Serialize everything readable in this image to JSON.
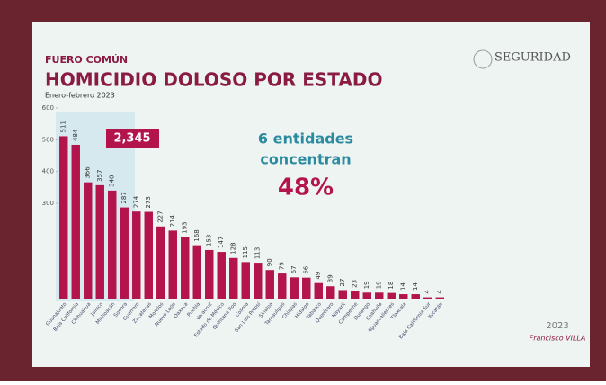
{
  "chart_data": {
    "type": "bar",
    "kicker": "FUERO COMÚN",
    "title": "HOMICIDIO DOLOSO POR ESTADO",
    "subtitle": "Enero-febrero 2023",
    "categories": [
      "Guanajuato",
      "Baja California",
      "Chihuahua",
      "Jalisco",
      "Michoacán",
      "Sonora",
      "Guerrero",
      "Zacatecas",
      "Morelos",
      "Nuevo León",
      "Oaxaca",
      "Puebla",
      "Veracruz",
      "Estado de México",
      "Quintana Roo",
      "Colima",
      "San Luis Potosí",
      "Sinaloa",
      "Tamaulipas",
      "Chiapas",
      "Hidalgo",
      "Tabasco",
      "Querétaro",
      "Nayarit",
      "Campeche",
      "Durango",
      "Coahuila",
      "Aguascalientes",
      "Tlaxcala",
      null,
      "Baja California Sur",
      "Yucatán"
    ],
    "values": [
      511,
      484,
      366,
      357,
      340,
      287,
      274,
      273,
      227,
      214,
      193,
      168,
      153,
      147,
      128,
      115,
      113,
      90,
      79,
      67,
      66,
      49,
      39,
      27,
      23,
      19,
      19,
      18,
      14,
      14,
      4,
      4
    ],
    "color": "#b3144c",
    "ylim": [
      0,
      600
    ],
    "yticks": [
      300,
      400,
      500,
      600
    ],
    "highlight_total": "2,345",
    "annotations": [
      "6 entidades",
      "concentran",
      "48%"
    ]
  },
  "logos": {
    "agency": "SEGURIDAD",
    "year": "2023",
    "motto": "Francisco VILLA"
  }
}
